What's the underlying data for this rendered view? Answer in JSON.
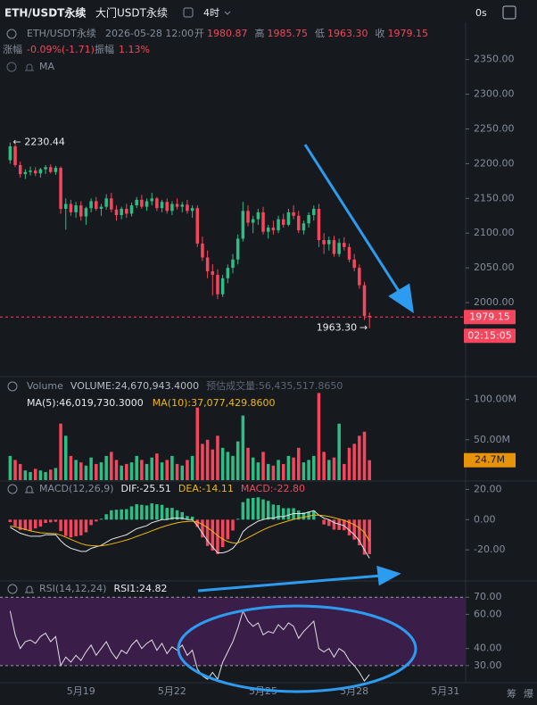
{
  "header": {
    "symbol": "ETH/USDT永续",
    "name": "大门USDT永续",
    "interval": "4时",
    "timer": "0s"
  },
  "info": {
    "symbol": "ETH/USDT永续",
    "time": "2026-05-28 12:00",
    "fields": [
      {
        "label": "开",
        "value": "1980.87"
      },
      {
        "label": "高",
        "value": "1985.75"
      },
      {
        "label": "低",
        "value": "1963.30"
      },
      {
        "label": "收",
        "value": "1979.15"
      }
    ],
    "change_label": "涨幅",
    "change": "-0.09%(-1.71)",
    "amp_label": "振幅",
    "amp": "1.13%",
    "overlay": "MA"
  },
  "footer": [
    "筹",
    "爆"
  ],
  "chart_data": [
    {
      "type": "candlestick",
      "up_color": "#2ebd85",
      "down_color": "#f6465d",
      "open": [
        2205,
        2225,
        2198,
        2185,
        2188,
        2190,
        2186,
        2192,
        2195,
        2188,
        2194,
        2135,
        2142,
        2130,
        2140,
        2124,
        2136,
        2146,
        2135,
        2138,
        2150,
        2134,
        2126,
        2135,
        2128,
        2140,
        2148,
        2138,
        2146,
        2150,
        2136,
        2145,
        2132,
        2142,
        2138,
        2141,
        2132,
        2136,
        2085,
        2065,
        2045,
        2040,
        2012,
        2035,
        2050,
        2062,
        2092,
        2132,
        2115,
        2120,
        2130,
        2102,
        2108,
        2104,
        2120,
        2112,
        2130,
        2125,
        2104,
        2114,
        2126,
        2135,
        2090,
        2084,
        2090,
        2070,
        2086,
        2080,
        2062,
        2050,
        2025,
        1980.87
      ],
      "high": [
        2230.44,
        2228,
        2203,
        2192,
        2196,
        2195,
        2194,
        2198,
        2199,
        2197,
        2196,
        2150,
        2148,
        2145,
        2146,
        2138,
        2150,
        2152,
        2142,
        2156,
        2158,
        2140,
        2138,
        2142,
        2144,
        2152,
        2155,
        2150,
        2158,
        2152,
        2148,
        2150,
        2146,
        2150,
        2145,
        2148,
        2140,
        2140,
        2095,
        2075,
        2055,
        2048,
        2040,
        2055,
        2070,
        2098,
        2145,
        2140,
        2125,
        2135,
        2138,
        2112,
        2118,
        2125,
        2128,
        2135,
        2140,
        2132,
        2118,
        2130,
        2140,
        2142,
        2100,
        2095,
        2096,
        2092,
        2094,
        2085,
        2070,
        2055,
        2030,
        1985.75
      ],
      "low": [
        2200,
        2195,
        2180,
        2178,
        2183,
        2182,
        2180,
        2185,
        2186,
        2184,
        2128,
        2105,
        2125,
        2122,
        2118,
        2112,
        2130,
        2132,
        2125,
        2134,
        2130,
        2118,
        2120,
        2122,
        2124,
        2136,
        2135,
        2132,
        2140,
        2132,
        2130,
        2128,
        2126,
        2134,
        2130,
        2128,
        2122,
        2080,
        2060,
        2035,
        2010,
        2005,
        2008,
        2028,
        2042,
        2055,
        2088,
        2110,
        2100,
        2112,
        2098,
        2092,
        2098,
        2100,
        2108,
        2110,
        2120,
        2100,
        2098,
        2108,
        2118,
        2080,
        2070,
        2075,
        2066,
        2066,
        2075,
        2058,
        2045,
        2020,
        1975,
        1963.3
      ],
      "close": [
        2225,
        2198,
        2185,
        2188,
        2190,
        2186,
        2192,
        2195,
        2188,
        2194,
        2135,
        2142,
        2130,
        2140,
        2124,
        2136,
        2146,
        2135,
        2138,
        2150,
        2134,
        2126,
        2135,
        2128,
        2140,
        2148,
        2138,
        2146,
        2150,
        2136,
        2145,
        2132,
        2142,
        2138,
        2141,
        2132,
        2136,
        2085,
        2065,
        2045,
        2040,
        2012,
        2035,
        2050,
        2062,
        2092,
        2132,
        2115,
        2120,
        2130,
        2102,
        2108,
        2104,
        2120,
        2112,
        2130,
        2125,
        2104,
        2114,
        2126,
        2135,
        2090,
        2084,
        2090,
        2070,
        2086,
        2080,
        2062,
        2050,
        2025,
        1980.87,
        1979.15
      ],
      "xlim": [
        -2,
        90
      ],
      "xticks": [
        {
          "value": 14,
          "label": "5月19"
        },
        {
          "value": 32,
          "label": "5月22"
        },
        {
          "value": 50,
          "label": "5月25"
        },
        {
          "value": 68,
          "label": "5月28"
        },
        {
          "value": 86,
          "label": "5月31"
        }
      ],
      "ylim": [
        1896,
        2365
      ],
      "yticks": [
        {
          "value": 2000,
          "label": "2000.00"
        },
        {
          "value": 2050,
          "label": "2050.00"
        },
        {
          "value": 2100,
          "label": "2100.00"
        },
        {
          "value": 2150,
          "label": "2150.00"
        },
        {
          "value": 2200,
          "label": "2200.00"
        },
        {
          "value": 2250,
          "label": "2250.00"
        },
        {
          "value": 2300,
          "label": "2300.00"
        },
        {
          "value": 2350,
          "label": "2350.00"
        }
      ],
      "current": {
        "value": 1979.15,
        "label": "1979.15"
      },
      "countdown": "02:15:05",
      "max_label": "2230.44",
      "min_label": "1963.30"
    },
    {
      "type": "bar",
      "title": "Volume",
      "stats": [
        {
          "text": "VOLUME:24,670,943.4000",
          "color": "#b7bdc6"
        },
        {
          "text": "预估成交量:56,435,517.8650",
          "color": "#5e6673"
        }
      ],
      "ma_stats": [
        {
          "text": "MA(5):46,019,730.3000",
          "color": "#eaecef"
        },
        {
          "text": "MA(10):37,077,429.8600",
          "color": "#f0b90b"
        }
      ],
      "values": [
        30,
        25,
        20,
        12,
        10,
        14,
        12,
        10,
        13,
        15,
        70,
        55,
        30,
        25,
        22,
        18,
        28,
        20,
        22,
        30,
        35,
        25,
        18,
        20,
        22,
        30,
        25,
        20,
        28,
        33,
        22,
        25,
        30,
        20,
        18,
        25,
        30,
        90,
        45,
        50,
        38,
        55,
        40,
        35,
        30,
        48,
        80,
        40,
        28,
        22,
        35,
        20,
        18,
        25,
        20,
        30,
        28,
        40,
        22,
        25,
        30,
        108,
        35,
        25,
        28,
        70,
        20,
        40,
        45,
        55,
        60,
        24.67
      ],
      "ylim": [
        0,
        125
      ],
      "yticks": [
        {
          "value": 50,
          "label": "50.00M"
        },
        {
          "value": 100,
          "label": "100.00M"
        }
      ],
      "current": {
        "value": 24.67,
        "label": "24.7M"
      },
      "current_color": "#e8930c"
    },
    {
      "type": "macd",
      "title": "MACD(12,26,9)",
      "stats": [
        {
          "text": "DIF:-25.51",
          "color": "#eaecef"
        },
        {
          "text": "DEA:-14.11",
          "color": "#f0b90b"
        },
        {
          "text": "MACD:-22.80",
          "color": "#f6465d"
        }
      ],
      "dif": [
        -5,
        -7,
        -9,
        -10,
        -11,
        -11,
        -11,
        -10,
        -10,
        -10,
        -14,
        -17,
        -19,
        -20,
        -21,
        -21,
        -19,
        -18,
        -17,
        -15,
        -13,
        -12,
        -11,
        -10,
        -8,
        -6,
        -5,
        -4,
        -2,
        -1,
        0,
        0,
        1,
        1,
        1,
        0,
        0,
        -4,
        -9,
        -14,
        -18,
        -22,
        -22,
        -21,
        -19,
        -15,
        -8,
        -5,
        -3,
        -1,
        0,
        1,
        1,
        2,
        2,
        3,
        4,
        4,
        4,
        5,
        6,
        3,
        1,
        0,
        -2,
        -3,
        -4,
        -7,
        -10,
        -14,
        -20,
        -25.51
      ],
      "dea": [
        -4.2,
        -4.8,
        -5.6,
        -6.5,
        -7.4,
        -8.1,
        -8.7,
        -8.9,
        -9.1,
        -9.3,
        -10.2,
        -11.6,
        -13.1,
        -14.5,
        -15.8,
        -16.8,
        -17.2,
        -17.4,
        -17.3,
        -16.8,
        -16.1,
        -15.3,
        -14.4,
        -13.5,
        -12.4,
        -11.1,
        -9.9,
        -8.7,
        -7.4,
        -6.1,
        -4.9,
        -3.9,
        -2.9,
        -2.1,
        -1.5,
        -1.2,
        -1.0,
        -1.6,
        -3.1,
        -5.3,
        -7.8,
        -10.6,
        -12.9,
        -14.5,
        -15.4,
        -15.3,
        -13.8,
        -12.0,
        -10.2,
        -8.4,
        -6.7,
        -5.2,
        -4.0,
        -2.8,
        -1.8,
        -0.8,
        0.2,
        1.0,
        1.6,
        2.3,
        3.0,
        3.0,
        2.6,
        2.1,
        1.3,
        0.4,
        -0.5,
        -1.8,
        -3.4,
        -5.5,
        -8.4,
        -14.11
      ],
      "histogram": [
        -1.6,
        -4.4,
        -6.8,
        -7.0,
        -7.2,
        -5.8,
        -4.6,
        -2.2,
        -1.8,
        -1.4,
        -7.6,
        -10.8,
        -11.8,
        -11.0,
        -10.4,
        -8.4,
        -3.6,
        -1.2,
        0.6,
        3.6,
        6.2,
        6.6,
        6.8,
        7.0,
        8.8,
        10.2,
        9.8,
        9.4,
        10.8,
        10.2,
        9.8,
        7.8,
        7.8,
        6.2,
        5.0,
        2.4,
        2.0,
        -4.8,
        -11.8,
        -17.4,
        -20.4,
        -22.8,
        -18.2,
        -13.0,
        -7.2,
        0.6,
        11.6,
        14.0,
        14.4,
        14.8,
        13.4,
        12.4,
        10.0,
        9.6,
        7.6,
        7.6,
        7.6,
        6.0,
        4.8,
        5.4,
        6.0,
        0,
        -3.2,
        -4.2,
        -6.6,
        -6.8,
        -7.0,
        -10.4,
        -13.2,
        -17.0,
        -23.2,
        -22.8
      ],
      "dif_color": "#e6e6e6",
      "dea_color": "#f0b90b",
      "up_color": "#2ebd85",
      "down_color": "#f6465d",
      "ylim": [
        -40,
        25
      ],
      "yticks": [
        {
          "value": -20,
          "label": "-20.00"
        },
        {
          "value": 0,
          "label": "0.00"
        },
        {
          "value": 20,
          "label": "20.00"
        }
      ]
    },
    {
      "type": "line",
      "title": "RSI(14,12,24)",
      "stats": [
        {
          "text": "RSI1:24.82",
          "color": "#eaecef"
        }
      ],
      "values": [
        62,
        48,
        40,
        44,
        45,
        43,
        47,
        49,
        44,
        47,
        30,
        35,
        32,
        36,
        33,
        38,
        42,
        36,
        40,
        44,
        38,
        34,
        39,
        37,
        42,
        45,
        40,
        43,
        45,
        39,
        43,
        37,
        41,
        39,
        42,
        36,
        39,
        28,
        24,
        22,
        26,
        22,
        32,
        38,
        44,
        52,
        62,
        56,
        53,
        55,
        48,
        50,
        49,
        54,
        51,
        55,
        53,
        46,
        50,
        53,
        56,
        40,
        38,
        40,
        35,
        40,
        38,
        33,
        30,
        26,
        21,
        24.82
      ],
      "color": "#e0e0e0",
      "band": [
        30,
        70
      ],
      "band_color": "#3b1d4a",
      "ylim": [
        20,
        79
      ],
      "yticks": [
        {
          "value": 30,
          "label": "30.00"
        },
        {
          "value": 40,
          "label": "40.00"
        },
        {
          "value": 60,
          "label": "60.00"
        },
        {
          "value": 70,
          "label": "70.00"
        }
      ]
    }
  ]
}
